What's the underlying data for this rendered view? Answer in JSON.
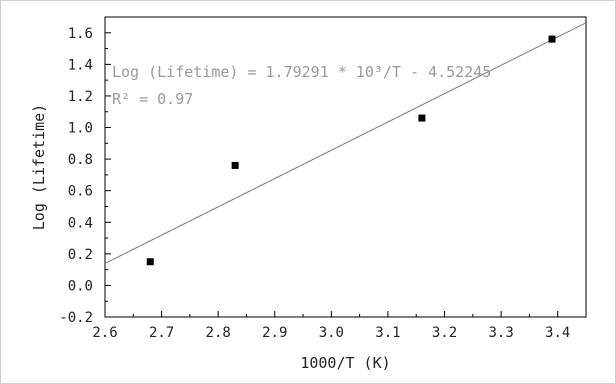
{
  "chart_data": {
    "type": "scatter",
    "xlabel": "1000/T (K)",
    "ylabel": "Log (Lifetime)",
    "xlim": [
      2.6,
      3.45
    ],
    "ylim": [
      -0.2,
      1.7
    ],
    "x_ticks": [
      "2.6",
      "2.7",
      "2.8",
      "2.9",
      "3.0",
      "3.1",
      "3.2",
      "3.3",
      "3.4"
    ],
    "y_ticks": [
      "-0.2",
      "0.0",
      "0.2",
      "0.4",
      "0.6",
      "0.8",
      "1.0",
      "1.2",
      "1.4",
      "1.6"
    ],
    "points": [
      {
        "x": 2.68,
        "y": 0.15
      },
      {
        "x": 2.83,
        "y": 0.76
      },
      {
        "x": 3.16,
        "y": 1.06
      },
      {
        "x": 3.39,
        "y": 1.56
      }
    ],
    "fit": {
      "slope": 1.79291,
      "intercept": -4.52245
    },
    "annotation_line1": "Log (Lifetime) = 1.79291 * 10³/T - 4.52245",
    "annotation_line2": "R² = 0.97",
    "grid": false,
    "colors": {
      "points": "#000000",
      "fit_line": "#7a7a7a",
      "axes": "#000000",
      "annotation": "#9a9a9a"
    }
  }
}
